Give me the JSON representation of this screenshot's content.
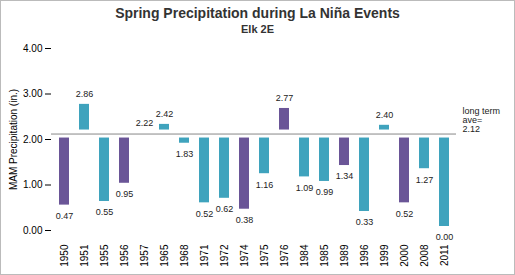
{
  "chart_data": {
    "type": "bar",
    "title": "Spring Precipitation during La Niña Events",
    "subtitle": "Elk 2E",
    "y_label": "MAM Precipitation (in.)",
    "categories": [
      "1950",
      "1951",
      "1955",
      "1956",
      "1957",
      "1965",
      "1968",
      "1971",
      "1972",
      "1974",
      "1975",
      "1976",
      "1984",
      "1985",
      "1989",
      "1996",
      "1999",
      "2000",
      "2008",
      "2011"
    ],
    "values": [
      0.47,
      2.86,
      0.55,
      0.95,
      2.22,
      2.42,
      1.83,
      0.52,
      0.62,
      0.38,
      1.16,
      2.77,
      1.09,
      0.99,
      1.34,
      0.33,
      2.4,
      0.52,
      1.27,
      0.0
    ],
    "value_labels": [
      "0.47",
      "2.86",
      "0.55",
      "0.95",
      "2.22",
      "2.42",
      "1.83",
      "0.52",
      "0.62",
      "0.38",
      "1.16",
      "2.77",
      "1.09",
      "0.99",
      "1.34",
      "0.33",
      "2.40",
      "0.52",
      "1.27",
      "0.00"
    ],
    "colors": [
      "#6a5597",
      "#3fa3bd",
      "#3fa3bd",
      "#6a5597",
      "#3fa3bd",
      "#3fa3bd",
      "#3fa3bd",
      "#3fa3bd",
      "#3fa3bd",
      "#6a5597",
      "#3fa3bd",
      "#6a5597",
      "#3fa3bd",
      "#3fa3bd",
      "#6a5597",
      "#3fa3bd",
      "#3fa3bd",
      "#6a5597",
      "#3fa3bd",
      "#3fa3bd"
    ],
    "baseline": {
      "value": 2.12,
      "label": "long term\nave=\n2.12"
    },
    "ylim": [
      0,
      4
    ],
    "yticks": [
      {
        "value": 0,
        "label": "0.00"
      },
      {
        "value": 1,
        "label": "1.00"
      },
      {
        "value": 2,
        "label": "2.00"
      },
      {
        "value": 3,
        "label": "3.00"
      },
      {
        "value": 4,
        "label": "4.00"
      }
    ],
    "data_labels": true,
    "grid": false
  }
}
